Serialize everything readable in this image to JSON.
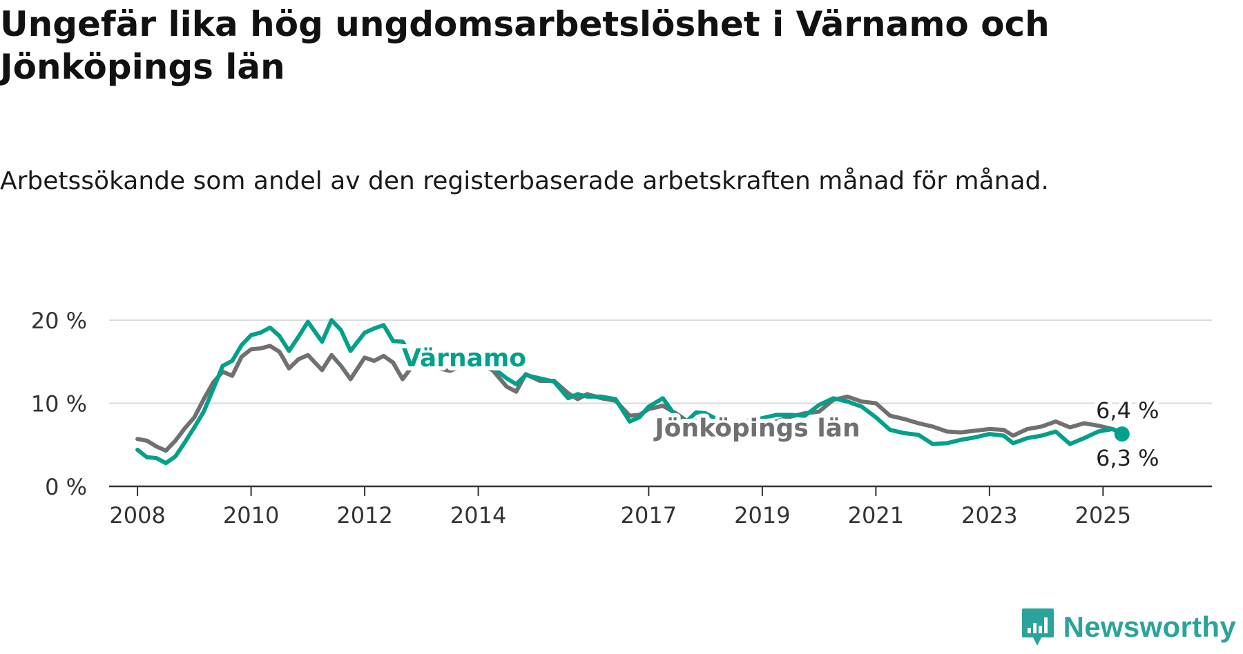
{
  "title": "Ungefär lika hög ungdomsarbetslöshet i Värnamo och Jönköpings län",
  "subtitle": "Arbetssökande som andel av den registerbaserade arbetskraften månad för månad.",
  "brand": {
    "name": "Newsworthy",
    "icon": "newsworthy-chat-bar-icon",
    "color": "#2aa39a"
  },
  "chart_data": {
    "type": "line",
    "x_type": "date",
    "xlim": [
      "2007-07",
      "2026-12"
    ],
    "ylim": [
      0,
      22
    ],
    "y_ticks": [
      {
        "value": 0,
        "label": "0 %"
      },
      {
        "value": 10,
        "label": "10 %"
      },
      {
        "value": 20,
        "label": "20 %"
      }
    ],
    "x_ticks": [
      "2008",
      "2010",
      "2012",
      "2014",
      "2017",
      "2019",
      "2021",
      "2023",
      "2025"
    ],
    "grid": "horizontal",
    "legend": "inline labels",
    "series": [
      {
        "name": "Jönköpings län",
        "color": "#707070",
        "label_at": "2018-12",
        "label_value": 7.0,
        "end_label": "6,4 %",
        "points": [
          [
            "2008-01",
            5.7
          ],
          [
            "2008-03",
            5.5
          ],
          [
            "2008-05",
            4.8
          ],
          [
            "2008-07",
            4.3
          ],
          [
            "2008-09",
            5.5
          ],
          [
            "2008-11",
            7.0
          ],
          [
            "2009-01",
            8.3
          ],
          [
            "2009-03",
            10.5
          ],
          [
            "2009-05",
            12.5
          ],
          [
            "2009-07",
            13.8
          ],
          [
            "2009-09",
            13.3
          ],
          [
            "2009-11",
            15.6
          ],
          [
            "2010-01",
            16.5
          ],
          [
            "2010-03",
            16.6
          ],
          [
            "2010-05",
            16.9
          ],
          [
            "2010-07",
            16.2
          ],
          [
            "2010-09",
            14.2
          ],
          [
            "2010-11",
            15.3
          ],
          [
            "2011-01",
            15.8
          ],
          [
            "2011-04",
            14.0
          ],
          [
            "2011-06",
            15.8
          ],
          [
            "2011-08",
            14.5
          ],
          [
            "2011-10",
            12.9
          ],
          [
            "2012-01",
            15.5
          ],
          [
            "2012-03",
            15.1
          ],
          [
            "2012-05",
            15.7
          ],
          [
            "2012-07",
            14.9
          ],
          [
            "2012-09",
            12.9
          ],
          [
            "2012-11",
            14.4
          ],
          [
            "2013-01",
            15.3
          ],
          [
            "2013-04",
            14.3
          ],
          [
            "2013-07",
            13.9
          ],
          [
            "2013-10",
            14.6
          ],
          [
            "2014-01",
            14.6
          ],
          [
            "2014-04",
            14.0
          ],
          [
            "2014-07",
            12.0
          ],
          [
            "2014-09",
            11.4
          ],
          [
            "2014-11",
            13.5
          ],
          [
            "2015-02",
            12.7
          ],
          [
            "2015-05",
            12.7
          ],
          [
            "2015-08",
            11.2
          ],
          [
            "2015-10",
            10.5
          ],
          [
            "2015-12",
            11.1
          ],
          [
            "2016-03",
            10.6
          ],
          [
            "2016-06",
            10.3
          ],
          [
            "2016-09",
            8.5
          ],
          [
            "2016-11",
            8.6
          ],
          [
            "2017-01",
            9.3
          ],
          [
            "2017-04",
            9.7
          ],
          [
            "2017-07",
            8.7
          ],
          [
            "2017-09",
            7.9
          ],
          [
            "2017-11",
            7.9
          ],
          [
            "2018-01",
            7.4
          ],
          [
            "2018-04",
            7.2
          ],
          [
            "2018-07",
            7.0
          ],
          [
            "2018-10",
            7.3
          ],
          [
            "2019-01",
            7.2
          ],
          [
            "2019-04",
            7.8
          ],
          [
            "2019-07",
            8.4
          ],
          [
            "2019-10",
            8.8
          ],
          [
            "2020-01",
            9.0
          ],
          [
            "2020-04",
            10.4
          ],
          [
            "2020-07",
            10.8
          ],
          [
            "2020-10",
            10.2
          ],
          [
            "2021-01",
            10.0
          ],
          [
            "2021-04",
            8.5
          ],
          [
            "2021-07",
            8.1
          ],
          [
            "2021-10",
            7.6
          ],
          [
            "2022-01",
            7.2
          ],
          [
            "2022-04",
            6.6
          ],
          [
            "2022-07",
            6.5
          ],
          [
            "2022-10",
            6.7
          ],
          [
            "2023-01",
            6.9
          ],
          [
            "2023-04",
            6.8
          ],
          [
            "2023-06",
            6.1
          ],
          [
            "2023-09",
            6.9
          ],
          [
            "2023-12",
            7.2
          ],
          [
            "2024-03",
            7.8
          ],
          [
            "2024-06",
            7.1
          ],
          [
            "2024-09",
            7.6
          ],
          [
            "2024-12",
            7.3
          ],
          [
            "2025-03",
            6.9
          ],
          [
            "2025-05",
            6.4
          ]
        ]
      },
      {
        "name": "Värnamo",
        "color": "#00a08a",
        "label_at": "2013-10",
        "label_value": 15.6,
        "end_label": "6,3 %",
        "points": [
          [
            "2008-01",
            4.4
          ],
          [
            "2008-03",
            3.5
          ],
          [
            "2008-05",
            3.4
          ],
          [
            "2008-07",
            2.8
          ],
          [
            "2008-09",
            3.6
          ],
          [
            "2008-11",
            5.3
          ],
          [
            "2009-01",
            7.1
          ],
          [
            "2009-03",
            9.0
          ],
          [
            "2009-05",
            11.7
          ],
          [
            "2009-07",
            14.5
          ],
          [
            "2009-09",
            15.1
          ],
          [
            "2009-11",
            17.0
          ],
          [
            "2010-01",
            18.2
          ],
          [
            "2010-03",
            18.5
          ],
          [
            "2010-05",
            19.1
          ],
          [
            "2010-07",
            18.1
          ],
          [
            "2010-09",
            16.3
          ],
          [
            "2010-11",
            18.0
          ],
          [
            "2011-01",
            19.8
          ],
          [
            "2011-04",
            17.4
          ],
          [
            "2011-06",
            20.0
          ],
          [
            "2011-08",
            18.8
          ],
          [
            "2011-10",
            16.3
          ],
          [
            "2012-01",
            18.5
          ],
          [
            "2012-03",
            19.0
          ],
          [
            "2012-05",
            19.4
          ],
          [
            "2012-07",
            17.5
          ],
          [
            "2012-09",
            17.4
          ],
          [
            "2012-11",
            15.6
          ],
          [
            "2013-01",
            15.1
          ],
          [
            "2013-04",
            15.0
          ],
          [
            "2013-07",
            14.8
          ],
          [
            "2013-10",
            14.9
          ],
          [
            "2014-01",
            14.8
          ],
          [
            "2014-04",
            14.3
          ],
          [
            "2014-07",
            13.0
          ],
          [
            "2014-09",
            12.3
          ],
          [
            "2014-11",
            13.4
          ],
          [
            "2015-02",
            13.0
          ],
          [
            "2015-05",
            12.6
          ],
          [
            "2015-08",
            10.6
          ],
          [
            "2015-10",
            11.1
          ],
          [
            "2015-12",
            10.8
          ],
          [
            "2016-03",
            10.8
          ],
          [
            "2016-06",
            10.5
          ],
          [
            "2016-09",
            7.8
          ],
          [
            "2016-11",
            8.3
          ],
          [
            "2017-01",
            9.6
          ],
          [
            "2017-04",
            10.6
          ],
          [
            "2017-07",
            8.2
          ],
          [
            "2017-09",
            7.8
          ],
          [
            "2017-11",
            8.9
          ],
          [
            "2018-01",
            8.8
          ],
          [
            "2018-04",
            7.9
          ],
          [
            "2018-07",
            7.6
          ],
          [
            "2018-10",
            7.9
          ],
          [
            "2019-01",
            8.2
          ],
          [
            "2019-04",
            8.6
          ],
          [
            "2019-07",
            8.6
          ],
          [
            "2019-10",
            8.5
          ],
          [
            "2020-01",
            9.8
          ],
          [
            "2020-04",
            10.6
          ],
          [
            "2020-07",
            10.2
          ],
          [
            "2020-10",
            9.6
          ],
          [
            "2021-01",
            8.3
          ],
          [
            "2021-04",
            6.8
          ],
          [
            "2021-07",
            6.4
          ],
          [
            "2021-10",
            6.2
          ],
          [
            "2022-01",
            5.1
          ],
          [
            "2022-04",
            5.2
          ],
          [
            "2022-07",
            5.6
          ],
          [
            "2022-10",
            5.9
          ],
          [
            "2023-01",
            6.3
          ],
          [
            "2023-04",
            6.1
          ],
          [
            "2023-06",
            5.2
          ],
          [
            "2023-09",
            5.8
          ],
          [
            "2023-12",
            6.1
          ],
          [
            "2024-03",
            6.6
          ],
          [
            "2024-06",
            5.1
          ],
          [
            "2024-09",
            5.8
          ],
          [
            "2024-12",
            6.6
          ],
          [
            "2025-03",
            6.9
          ],
          [
            "2025-05",
            6.3
          ]
        ]
      }
    ]
  }
}
